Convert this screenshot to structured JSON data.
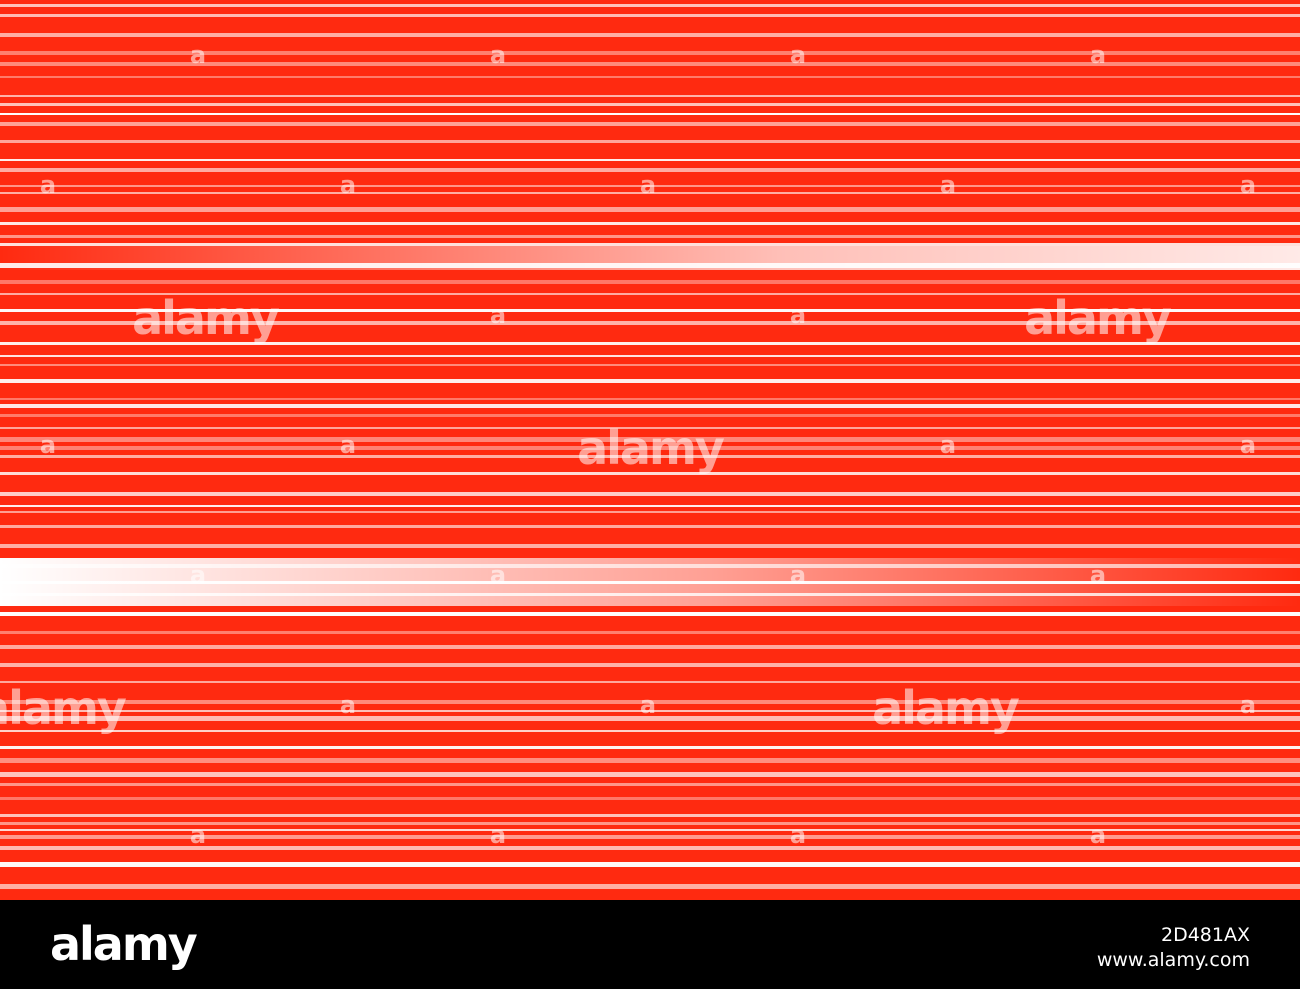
{
  "watermark": {
    "logo": "alamy",
    "mark": "a"
  },
  "footer": {
    "logo": "alamy",
    "image_id": "2D481AX",
    "url": "www.alamy.com"
  }
}
